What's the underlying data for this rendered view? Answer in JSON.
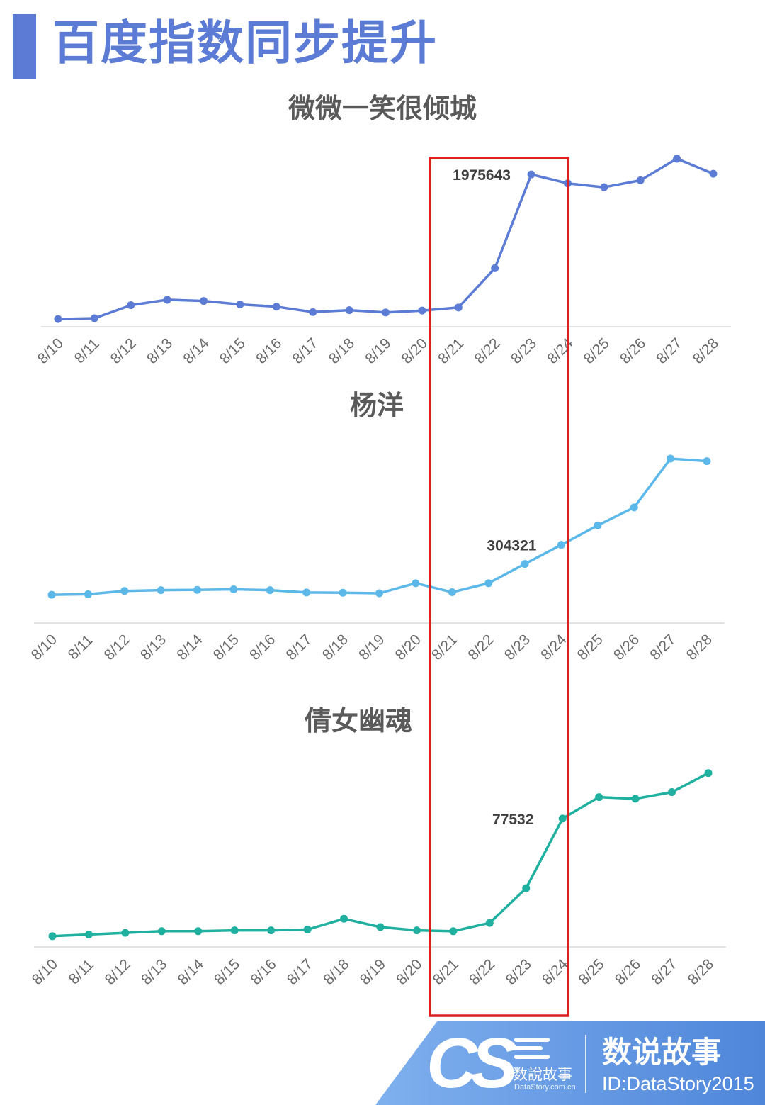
{
  "page_title": "百度指数同步提升",
  "colors": {
    "accent": "#5b7bd5",
    "highlight_box": "#e02020",
    "footer_band": "#5b8fde"
  },
  "chart_data": [
    {
      "type": "line",
      "title": "微微一笑很倾城",
      "categories": [
        "8/10",
        "8/11",
        "8/12",
        "8/13",
        "8/14",
        "8/15",
        "8/16",
        "8/17",
        "8/18",
        "8/19",
        "8/20",
        "8/21",
        "8/22",
        "8/23",
        "8/24",
        "8/25",
        "8/26",
        "8/27",
        "8/28"
      ],
      "series": [
        {
          "color": "#5b7bd5",
          "values": [
            100000,
            110000,
            280000,
            350000,
            335000,
            290000,
            260000,
            190000,
            215000,
            185000,
            210000,
            250000,
            760000,
            1975643,
            1860000,
            1810000,
            1900000,
            2180000,
            1985000
          ]
        }
      ],
      "annotations": [
        {
          "category": "8/23",
          "text": "1975643"
        }
      ],
      "ylim": [
        0,
        2400000
      ],
      "grid": false,
      "xlabel": "",
      "ylabel": ""
    },
    {
      "type": "line",
      "title": "杨洋",
      "categories": [
        "8/10",
        "8/11",
        "8/12",
        "8/13",
        "8/14",
        "8/15",
        "8/16",
        "8/17",
        "8/18",
        "8/19",
        "8/20",
        "8/21",
        "8/22",
        "8/23",
        "8/24",
        "8/25",
        "8/26",
        "8/27",
        "8/28"
      ],
      "series": [
        {
          "color": "#5bb8e8",
          "values": [
            110000,
            112000,
            125000,
            128000,
            129000,
            131000,
            128000,
            119000,
            118000,
            116000,
            155000,
            120000,
            155000,
            230000,
            304321,
            380000,
            450000,
            640000,
            630000
          ]
        }
      ],
      "annotations": [
        {
          "category": "8/24",
          "text": "304321"
        }
      ],
      "ylim": [
        0,
        720000
      ],
      "grid": false,
      "xlabel": "",
      "ylabel": ""
    },
    {
      "type": "line",
      "title": "倩女幽魂",
      "categories": [
        "8/10",
        "8/11",
        "8/12",
        "8/13",
        "8/14",
        "8/15",
        "8/16",
        "8/17",
        "8/18",
        "8/19",
        "8/20",
        "8/21",
        "8/22",
        "8/23",
        "8/24",
        "8/25",
        "8/26",
        "8/27",
        "8/28"
      ],
      "series": [
        {
          "color": "#1fb09f",
          "values": [
            6500,
            7500,
            8500,
            9500,
            9500,
            10000,
            10000,
            10500,
            17000,
            12000,
            10000,
            9500,
            14500,
            35500,
            77532,
            90500,
            89500,
            93500,
            105000
          ]
        }
      ],
      "annotations": [
        {
          "category": "8/24",
          "text": "77532"
        }
      ],
      "ylim": [
        0,
        113000
      ],
      "grid": false,
      "xlabel": "",
      "ylabel": ""
    }
  ],
  "footer": {
    "logo_letters": "CS",
    "logo_name": "数說故事",
    "logo_url": "DataStory.com.cn",
    "brand_name": "数说故事",
    "brand_id": "ID:DataStory2015"
  }
}
